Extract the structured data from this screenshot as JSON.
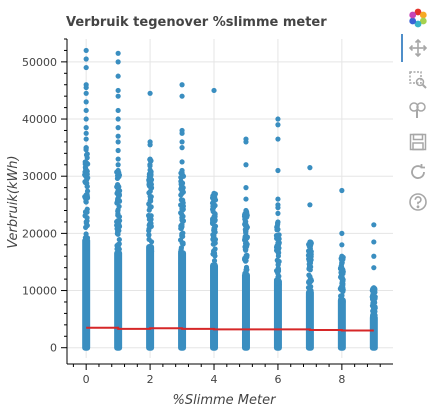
{
  "chart_data": {
    "type": "scatter",
    "title": "Verbruik tegenover %slimme meter",
    "xlabel": "%Slimme Meter",
    "ylabel": "Verbruik(kWh)",
    "xlim": [
      -0.6,
      9.6
    ],
    "ylim": [
      -1800,
      54000
    ],
    "xticks": [
      0,
      2,
      4,
      6,
      8
    ],
    "yticks": [
      0,
      10000,
      20000,
      30000,
      40000,
      50000
    ],
    "grid": true,
    "point_color": "#3a8ec0",
    "line_color": "#d62728",
    "columns": [
      {
        "x": 0,
        "dense_top": 35000,
        "outliers": [
          52000,
          50500,
          49000,
          46000,
          45500,
          44500,
          43000,
          41500,
          40000,
          38500,
          37500,
          36500
        ]
      },
      {
        "x": 1,
        "dense_top": 31000,
        "outliers": [
          51500,
          50000,
          47500,
          45000,
          44000,
          41500,
          40000,
          38500,
          37000,
          36000,
          34500,
          33000,
          32000
        ]
      },
      {
        "x": 2,
        "dense_top": 33000,
        "outliers": [
          44500,
          36000,
          35500
        ]
      },
      {
        "x": 3,
        "dense_top": 31000,
        "outliers": [
          46000,
          44000,
          38000,
          37500,
          36000,
          35000,
          32500
        ]
      },
      {
        "x": 4,
        "dense_top": 27000,
        "outliers": [
          45000
        ]
      },
      {
        "x": 5,
        "dense_top": 24000,
        "outliers": [
          36500,
          36000,
          32000,
          28000,
          26000
        ]
      },
      {
        "x": 6,
        "dense_top": 22000,
        "outliers": [
          40000,
          39000,
          36500,
          31000,
          26000,
          25000,
          24500,
          23500
        ]
      },
      {
        "x": 7,
        "dense_top": 18500,
        "outliers": [
          31500,
          25000
        ]
      },
      {
        "x": 8,
        "dense_top": 16000,
        "outliers": [
          27500,
          20000,
          18000
        ]
      },
      {
        "x": 9,
        "dense_top": 10500,
        "outliers": [
          21500,
          18500,
          16000,
          14000
        ]
      }
    ],
    "trend_line": {
      "x": [
        0,
        1,
        2,
        3,
        4,
        5,
        6,
        7,
        8,
        9
      ],
      "y": [
        3500,
        3300,
        3400,
        3300,
        3200,
        3200,
        3200,
        3100,
        3000,
        3000
      ]
    }
  },
  "toolbar": {
    "tools": [
      {
        "icon": "bokeh-logo-icon",
        "label": "Bokeh"
      },
      {
        "icon": "pan-icon",
        "label": "Pan"
      },
      {
        "icon": "box-zoom-icon",
        "label": "Box Zoom"
      },
      {
        "icon": "wheel-zoom-icon",
        "label": "Wheel Zoom"
      },
      {
        "icon": "save-icon",
        "label": "Save"
      },
      {
        "icon": "reset-icon",
        "label": "Reset"
      },
      {
        "icon": "help-icon",
        "label": "Help"
      }
    ]
  }
}
